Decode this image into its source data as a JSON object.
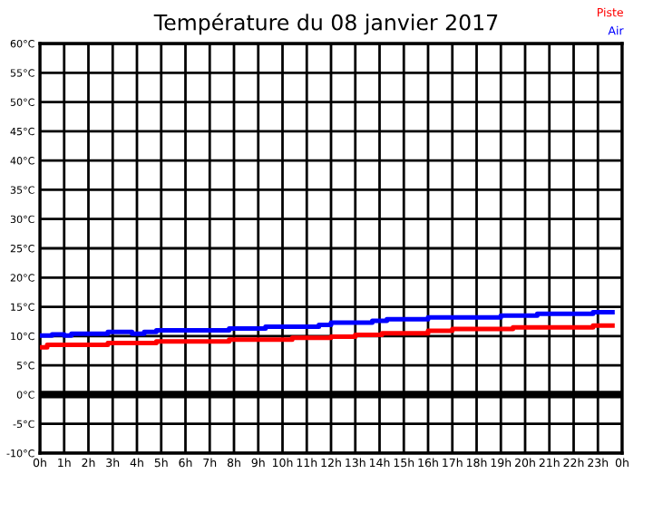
{
  "chart_data": {
    "type": "step",
    "title": "Température du 08 janvier 2017",
    "xlim": [
      "2017-01-08T00:00",
      "2017-01-09T00:00"
    ],
    "ylim": [
      -10,
      60
    ],
    "xticks": [
      {
        "value": "2017-01-08T00:00",
        "label": "0h"
      },
      {
        "value": "2017-01-08T01:00",
        "label": "1h"
      },
      {
        "value": "2017-01-08T02:00",
        "label": "2h"
      },
      {
        "value": "2017-01-08T03:00",
        "label": "3h"
      },
      {
        "value": "2017-01-08T04:00",
        "label": "4h"
      },
      {
        "value": "2017-01-08T05:00",
        "label": "5h"
      },
      {
        "value": "2017-01-08T06:00",
        "label": "6h"
      },
      {
        "value": "2017-01-08T07:00",
        "label": "7h"
      },
      {
        "value": "2017-01-08T08:00",
        "label": "8h"
      },
      {
        "value": "2017-01-08T09:00",
        "label": "9h"
      },
      {
        "value": "2017-01-08T10:00",
        "label": "10h"
      },
      {
        "value": "2017-01-08T11:00",
        "label": "11h"
      },
      {
        "value": "2017-01-08T12:00",
        "label": "12h"
      },
      {
        "value": "2017-01-08T13:00",
        "label": "13h"
      },
      {
        "value": "2017-01-08T14:00",
        "label": "14h"
      },
      {
        "value": "2017-01-08T15:00",
        "label": "15h"
      },
      {
        "value": "2017-01-08T16:00",
        "label": "16h"
      },
      {
        "value": "2017-01-08T17:00",
        "label": "17h"
      },
      {
        "value": "2017-01-08T18:00",
        "label": "18h"
      },
      {
        "value": "2017-01-08T19:00",
        "label": "19h"
      },
      {
        "value": "2017-01-08T20:00",
        "label": "20h"
      },
      {
        "value": "2017-01-08T21:00",
        "label": "21h"
      },
      {
        "value": "2017-01-08T22:00",
        "label": "22h"
      },
      {
        "value": "2017-01-08T23:00",
        "label": "23h"
      },
      {
        "value": "2017-01-09T00:00",
        "label": "0h"
      }
    ],
    "yticks": [
      {
        "value": -10,
        "label": "-10°C"
      },
      {
        "value": -5,
        "label": "-5°C"
      },
      {
        "value": 0,
        "label": "0°C"
      },
      {
        "value": 5,
        "label": "5°C"
      },
      {
        "value": 10,
        "label": "10°C"
      },
      {
        "value": 15,
        "label": "15°C"
      },
      {
        "value": 20,
        "label": "20°C"
      },
      {
        "value": 25,
        "label": "25°C"
      },
      {
        "value": 30,
        "label": "30°C"
      },
      {
        "value": 35,
        "label": "35°C"
      },
      {
        "value": 40,
        "label": "40°C"
      },
      {
        "value": 45,
        "label": "45°C"
      },
      {
        "value": 50,
        "label": "50°C"
      },
      {
        "value": 55,
        "label": "55°C"
      },
      {
        "value": 60,
        "label": "60°C"
      }
    ],
    "grid": true,
    "legend": "top right",
    "marker": "none",
    "line_style": "solid",
    "ref_lines": [
      {
        "axis": "y",
        "value": 0,
        "color": "#000000"
      }
    ],
    "series": [
      {
        "name": "Piste",
        "color": "#ff0000",
        "x": [
          "2017-01-08T00:00",
          "2017-01-08T00:18",
          "2017-01-08T02:48",
          "2017-01-08T04:48",
          "2017-01-08T07:48",
          "2017-01-08T10:24",
          "2017-01-08T12:00",
          "2017-01-08T13:00",
          "2017-01-08T14:06",
          "2017-01-08T16:00",
          "2017-01-08T17:00",
          "2017-01-08T19:30",
          "2017-01-08T22:48",
          "2017-01-08T23:36"
        ],
        "values": [
          8.1,
          8.5,
          8.8,
          9.1,
          9.4,
          9.7,
          9.9,
          10.2,
          10.5,
          10.9,
          11.2,
          11.5,
          11.8,
          11.8
        ]
      },
      {
        "name": "Air",
        "color": "#0000ff",
        "x": [
          "2017-01-08T00:00",
          "2017-01-08T00:30",
          "2017-01-08T01:00",
          "2017-01-08T01:18",
          "2017-01-08T02:48",
          "2017-01-08T03:48",
          "2017-01-08T04:18",
          "2017-01-08T04:48",
          "2017-01-08T07:48",
          "2017-01-08T09:18",
          "2017-01-08T11:30",
          "2017-01-08T12:00",
          "2017-01-08T13:42",
          "2017-01-08T14:18",
          "2017-01-08T16:00",
          "2017-01-08T19:00",
          "2017-01-08T20:30",
          "2017-01-08T22:48",
          "2017-01-08T23:36"
        ],
        "values": [
          10.1,
          10.3,
          10.1,
          10.4,
          10.7,
          10.4,
          10.7,
          11.0,
          11.3,
          11.6,
          11.9,
          12.3,
          12.6,
          12.9,
          13.2,
          13.5,
          13.8,
          14.1,
          14.1
        ]
      }
    ]
  }
}
